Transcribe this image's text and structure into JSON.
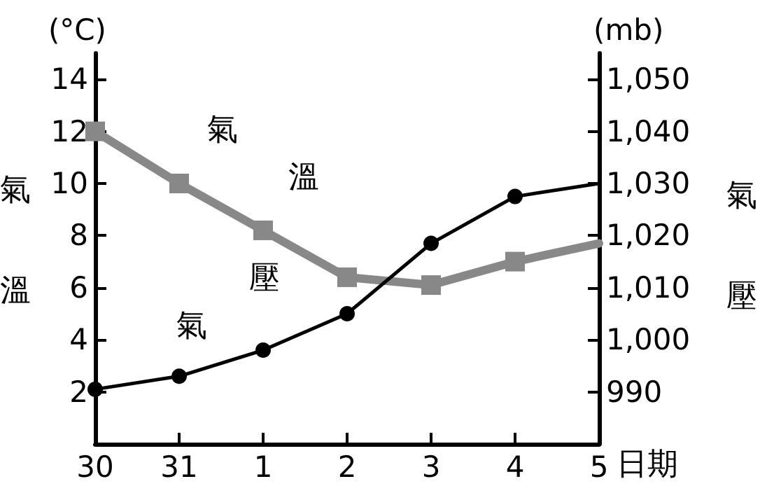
{
  "chart_data": {
    "type": "line",
    "xlabel": "日期",
    "ylabel": "(°C)",
    "y2label": "(mb)",
    "categories": [
      "30",
      "31",
      "1",
      "2",
      "3",
      "4",
      "5"
    ],
    "series": [
      {
        "color": "#888888",
        "marker": "square",
        "values": [
          12,
          10,
          8.2,
          6.4,
          6.1,
          7.0,
          7.7
        ]
      },
      {
        "color": "#000000",
        "marker": "circle",
        "axis": "y2",
        "values": [
          990.5,
          993,
          998,
          1005,
          1018.5,
          1027.5,
          1030
        ]
      }
    ],
    "ylim": [
      0,
      15
    ],
    "yticks": [
      2,
      4,
      6,
      8,
      10,
      12,
      14
    ],
    "y2lim": [
      980,
      1055
    ],
    "y2ticks": [
      {
        "value": 990,
        "label": "990"
      },
      {
        "value": 1000,
        "label": "1,000"
      },
      {
        "value": 1010,
        "label": "1,010"
      },
      {
        "value": 1020,
        "label": "1,020"
      },
      {
        "value": 1030,
        "label": "1,030"
      },
      {
        "value": 1040,
        "label": "1,040"
      },
      {
        "value": 1050,
        "label": "1,050"
      }
    ],
    "grid": false,
    "annotations": [
      "氣溫",
      "氣壓",
      "氣溫",
      "氣壓"
    ]
  }
}
